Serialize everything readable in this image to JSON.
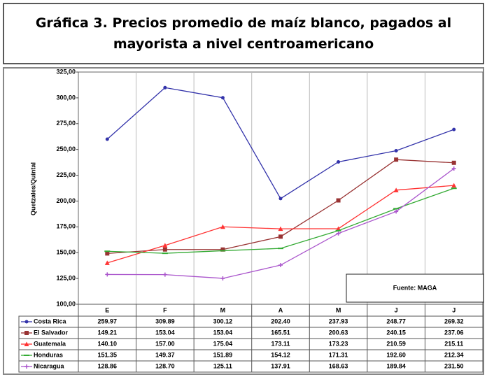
{
  "chart_data": {
    "type": "line",
    "title": "Gráfica 3. Precios promedio de maíz blanco, pagados al mayorista a nivel centroamericano",
    "y_label": "Quetzales/Quintal",
    "annotation": "Fuente: MAGA",
    "categories": [
      "E",
      "F",
      "M",
      "A",
      "M",
      "J",
      "J"
    ],
    "ylim": [
      100,
      325
    ],
    "yticks": [
      {
        "value": 100,
        "label": "100,00"
      },
      {
        "value": 125,
        "label": "125,00"
      },
      {
        "value": 150,
        "label": "150,00"
      },
      {
        "value": 175,
        "label": "175,00"
      },
      {
        "value": 200,
        "label": "200,00"
      },
      {
        "value": 225,
        "label": "225,00"
      },
      {
        "value": 250,
        "label": "250,00"
      },
      {
        "value": 275,
        "label": "275,00"
      },
      {
        "value": 300,
        "label": "300,00"
      },
      {
        "value": 325,
        "label": "325,00"
      }
    ],
    "grid": false,
    "series": [
      {
        "name": "Costa Rica",
        "color": "#3333aa",
        "marker": "circle",
        "values": [
          259.97,
          309.89,
          300.12,
          202.4,
          237.93,
          248.77,
          269.32
        ],
        "value_labels": [
          "259.97",
          "309.89",
          "300.12",
          "202.40",
          "237.93",
          "248.77",
          "269.32"
        ]
      },
      {
        "name": "El Salvador",
        "color": "#993333",
        "marker": "square",
        "values": [
          149.21,
          153.04,
          153.04,
          165.51,
          200.63,
          240.15,
          237.06
        ],
        "value_labels": [
          "149.21",
          "153.04",
          "153.04",
          "165.51",
          "200.63",
          "240.15",
          "237.06"
        ]
      },
      {
        "name": "Guatemala",
        "color": "#ff3333",
        "marker": "triangle",
        "values": [
          140.1,
          157,
          175.04,
          173.11,
          173.23,
          210.59,
          215.11
        ],
        "value_labels": [
          "140.10",
          "157.00",
          "175.04",
          "173.11",
          "173.23",
          "210.59",
          "215.11"
        ]
      },
      {
        "name": "Honduras",
        "color": "#33aa33",
        "marker": "dash",
        "values": [
          151.35,
          149.37,
          151.89,
          154.12,
          171.31,
          192.6,
          212.34
        ],
        "value_labels": [
          "151.35",
          "149.37",
          "151.89",
          "154.12",
          "171.31",
          "192.60",
          "212.34"
        ]
      },
      {
        "name": "Nicaragua",
        "color": "#aa55cc",
        "marker": "plus",
        "values": [
          128.86,
          128.7,
          125.11,
          137.91,
          168.63,
          189.84,
          231.5
        ],
        "value_labels": [
          "128.86",
          "128.70",
          "125.11",
          "137.91",
          "168.63",
          "189.84",
          "231.50"
        ]
      }
    ]
  }
}
